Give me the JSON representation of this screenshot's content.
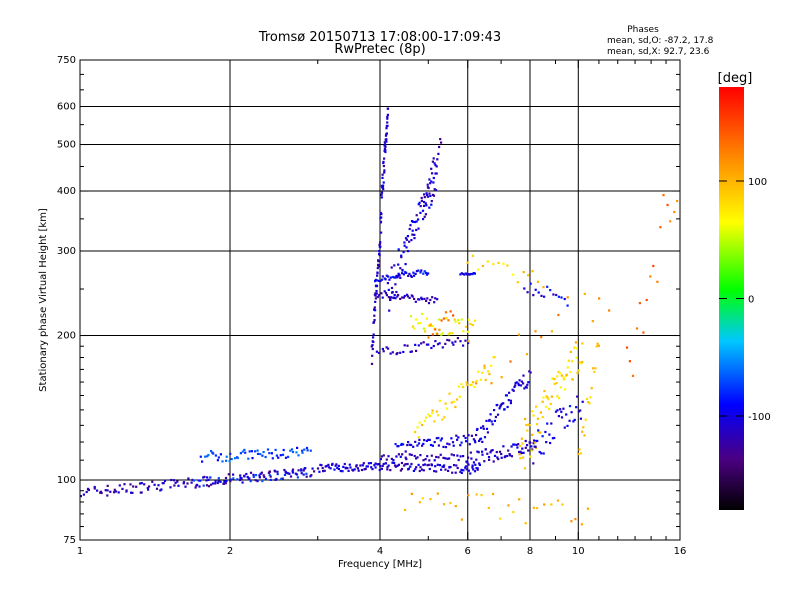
{
  "chart_data": {
    "type": "scatter",
    "title": "Tromsø 20150713 17:08:00-17:09:43",
    "subtitle": "RwPretec (8p)",
    "stats": {
      "heading": "Phases",
      "line_o": "mean, sd,O: -87.2, 17.8",
      "line_x": "mean, sd,X:  92.7, 23.6"
    },
    "xlabel": "Frequency [MHz]",
    "ylabel": "Stationary phase Virtual Height [km]",
    "x_scale": "log",
    "y_scale": "log",
    "xlim": [
      1,
      16
    ],
    "ylim": [
      75,
      750
    ],
    "x_ticks": [
      1,
      2,
      4,
      6,
      8,
      10,
      16
    ],
    "x_tick_labels": [
      "1",
      "2",
      "4",
      "6",
      "8",
      "10",
      "16"
    ],
    "y_ticks": [
      75,
      100,
      200,
      300,
      400,
      500,
      600,
      750
    ],
    "y_tick_labels": [
      "75",
      "100",
      "200",
      "300",
      "400",
      "500",
      "600",
      "750"
    ],
    "grid": true,
    "colorbar": {
      "label": "[deg]",
      "range": [
        -180,
        180
      ],
      "ticks": [
        100,
        0,
        -100
      ],
      "tick_labels": [
        "100",
        "0",
        "-100"
      ]
    },
    "traces": [
      {
        "x_range": [
          1.0,
          2.95
        ],
        "h_start": 94,
        "h_end": 104,
        "phase": -118,
        "n": 130,
        "spread": 2.5
      },
      {
        "x_range": [
          1.75,
          2.9
        ],
        "h_start": 112,
        "h_end": 114,
        "phase": -75,
        "n": 60,
        "spread": 3
      },
      {
        "x_range": [
          1.7,
          2.9
        ],
        "h_start": 99,
        "h_end": 103,
        "phase": -85,
        "n": 40,
        "spread": 2
      },
      {
        "x_range": [
          3.0,
          4.1
        ],
        "h_start": 106,
        "h_end": 107,
        "phase": -105,
        "n": 60,
        "spread": 2
      },
      {
        "x_range": [
          4.1,
          6.3
        ],
        "h_start": 107,
        "h_end": 105,
        "phase": -110,
        "n": 70,
        "spread": 2
      },
      {
        "x_range": [
          4.0,
          6.0
        ],
        "h_start": 112,
        "h_end": 111,
        "phase": -115,
        "n": 40,
        "spread": 2
      },
      {
        "x_range": [
          4.3,
          6.2
        ],
        "h_start": 117,
        "h_end": 122,
        "phase": -100,
        "n": 50,
        "spread": 3
      },
      {
        "x_range": [
          6.0,
          8.2
        ],
        "h_start": 110,
        "h_end": 118,
        "phase": -110,
        "n": 60,
        "spread": 4
      },
      {
        "x_range": [
          6.2,
          8.0
        ],
        "h_start": 120,
        "h_end": 165,
        "phase": -105,
        "n": 60,
        "spread": 6
      },
      {
        "x_range": [
          4.7,
          6.8
        ],
        "h_start": 122,
        "h_end": 175,
        "phase": 80,
        "n": 45,
        "spread": 8
      },
      {
        "x_range": [
          7.6,
          10.2
        ],
        "h_start": 112,
        "h_end": 185,
        "phase": 85,
        "n": 70,
        "spread": 15
      },
      {
        "x_range": [
          8.0,
          10.2
        ],
        "h_start": 115,
        "h_end": 145,
        "phase": -100,
        "n": 40,
        "spread": 10
      },
      {
        "x_range": [
          10.0,
          11.0
        ],
        "h_start": 110,
        "h_end": 190,
        "phase": 95,
        "n": 18,
        "spread": 10
      },
      {
        "x_range": [
          3.85,
          4.0
        ],
        "h_start": 180,
        "h_end": 310,
        "phase": -115,
        "n": 40,
        "spread": 10
      },
      {
        "x_range": [
          4.0,
          4.15
        ],
        "h_start": 320,
        "h_end": 590,
        "phase": -110,
        "n": 50,
        "spread": 30
      },
      {
        "x_range": [
          4.15,
          5.2
        ],
        "h_start": 240,
        "h_end": 420,
        "phase": -105,
        "n": 80,
        "spread": 25
      },
      {
        "x_range": [
          4.9,
          5.3
        ],
        "h_start": 380,
        "h_end": 500,
        "phase": -115,
        "n": 20,
        "spread": 20
      },
      {
        "x_range": [
          3.9,
          5.0
        ],
        "h_start": 262,
        "h_end": 272,
        "phase": -95,
        "n": 40,
        "spread": 4
      },
      {
        "x_range": [
          3.9,
          5.2
        ],
        "h_start": 245,
        "h_end": 236,
        "phase": -115,
        "n": 40,
        "spread": 4
      },
      {
        "x_range": [
          3.95,
          6.0
        ],
        "h_start": 185,
        "h_end": 195,
        "phase": -110,
        "n": 40,
        "spread": 4
      },
      {
        "x_range": [
          5.8,
          6.2
        ],
        "h_start": 268,
        "h_end": 270,
        "phase": -100,
        "n": 12,
        "spread": 2
      },
      {
        "x_range": [
          4.6,
          6.2
        ],
        "h_start": 215,
        "h_end": 205,
        "phase": 70,
        "n": 35,
        "spread": 10
      },
      {
        "x_range": [
          5.0,
          5.6
        ],
        "h_start": 200,
        "h_end": 225,
        "phase": 130,
        "n": 12,
        "spread": 8
      },
      {
        "x_range": [
          6.0,
          8.5
        ],
        "h_start": 285,
        "h_end": 260,
        "phase": 85,
        "n": 16,
        "spread": 12
      },
      {
        "x_range": [
          7.8,
          9.5
        ],
        "h_start": 250,
        "h_end": 240,
        "phase": -100,
        "n": 16,
        "spread": 10
      },
      {
        "x_range": [
          4.5,
          10.5
        ],
        "h_start": 90,
        "h_end": 85,
        "phase": 100,
        "n": 30,
        "spread": 6
      },
      {
        "x_range": [
          6.0,
          11.5
        ],
        "h_start": 175,
        "h_end": 230,
        "phase": 120,
        "n": 18,
        "spread": 30
      },
      {
        "x_range": [
          12.5,
          15.8
        ],
        "h_start": 150,
        "h_end": 420,
        "phase": 130,
        "n": 16,
        "spread": 60
      }
    ]
  }
}
